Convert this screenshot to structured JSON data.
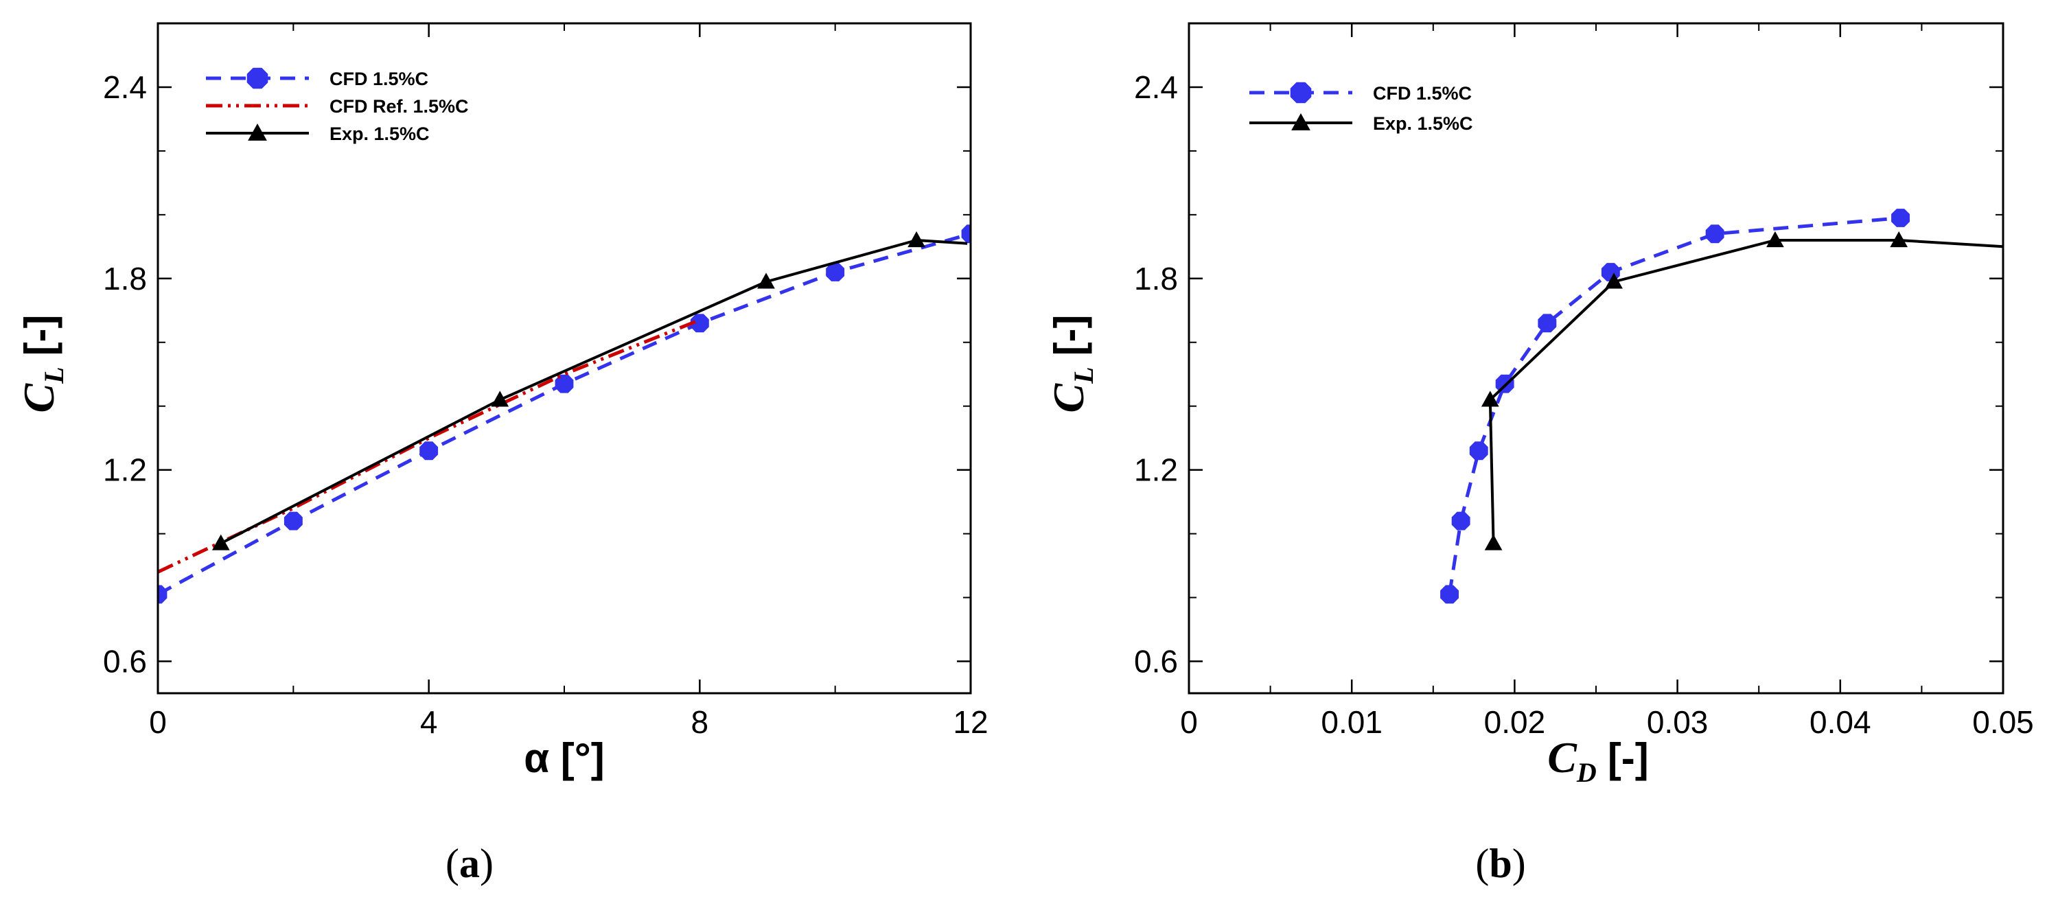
{
  "chart_data": [
    {
      "type": "line",
      "panel": "a",
      "panel_label": "a",
      "xlabel": "α [°]",
      "ylabel_main": "C",
      "ylabel_sub": "L",
      "ylabel_unit": "[-]",
      "xlim": [
        0,
        12
      ],
      "ylim": [
        0.5,
        2.6
      ],
      "xticks": [
        0,
        4,
        8,
        12
      ],
      "xtick_labels": [
        "0",
        "4",
        "8",
        "12"
      ],
      "yticks": [
        0.6,
        1.2,
        1.8,
        2.4
      ],
      "ytick_labels": [
        "0.6",
        "1.2",
        "1.8",
        "2.4"
      ],
      "legend_position": "top-left",
      "series": [
        {
          "name": "CFD 1.5%C",
          "color": "#3333ee",
          "style": "dashed",
          "marker": "circle",
          "x": [
            0,
            2,
            4,
            6,
            8,
            10,
            12
          ],
          "y": [
            0.81,
            1.04,
            1.26,
            1.47,
            1.66,
            1.82,
            1.94
          ]
        },
        {
          "name": "CFD Ref. 1.5%C",
          "color": "#cc0000",
          "style": "dashdotdot",
          "marker": "none",
          "x": [
            0,
            2,
            4,
            6,
            8
          ],
          "y": [
            0.88,
            1.08,
            1.3,
            1.5,
            1.67
          ]
        },
        {
          "name": "Exp. 1.5%C",
          "color": "#000000",
          "style": "solid",
          "marker": "triangle",
          "x": [
            0.93,
            5.05,
            8.98,
            11.2,
            11.95
          ],
          "y": [
            0.97,
            1.42,
            1.79,
            1.92,
            1.91
          ]
        }
      ]
    },
    {
      "type": "line",
      "panel": "b",
      "panel_label": "b",
      "xlabel_main": "C",
      "xlabel_sub": "D",
      "xlabel_unit": "[-]",
      "ylabel_main": "C",
      "ylabel_sub": "L",
      "ylabel_unit": "[-]",
      "xlim": [
        0,
        0.05
      ],
      "ylim": [
        0.5,
        2.6
      ],
      "xticks": [
        0,
        0.01,
        0.02,
        0.03,
        0.04,
        0.05
      ],
      "xtick_labels": [
        "0",
        "0.01",
        "0.02",
        "0.03",
        "0.04",
        "0.05"
      ],
      "yticks": [
        0.6,
        1.2,
        1.8,
        2.4
      ],
      "ytick_labels": [
        "0.6",
        "1.2",
        "1.8",
        "2.4"
      ],
      "legend_position": "top-left",
      "series": [
        {
          "name": "CFD 1.5%C",
          "color": "#3333ee",
          "style": "dashed",
          "marker": "circle",
          "x": [
            0.016,
            0.0167,
            0.0178,
            0.0194,
            0.022,
            0.0259,
            0.0323,
            0.0437
          ],
          "y": [
            0.81,
            1.04,
            1.26,
            1.47,
            1.66,
            1.82,
            1.94,
            1.99
          ]
        },
        {
          "name": "Exp. 1.5%C",
          "color": "#000000",
          "style": "solid",
          "marker": "triangle",
          "x": [
            0.0187,
            0.0185,
            0.0261,
            0.036,
            0.0436,
            0.05
          ],
          "y": [
            0.97,
            1.42,
            1.79,
            1.92,
            1.92,
            1.9
          ]
        }
      ]
    }
  ]
}
